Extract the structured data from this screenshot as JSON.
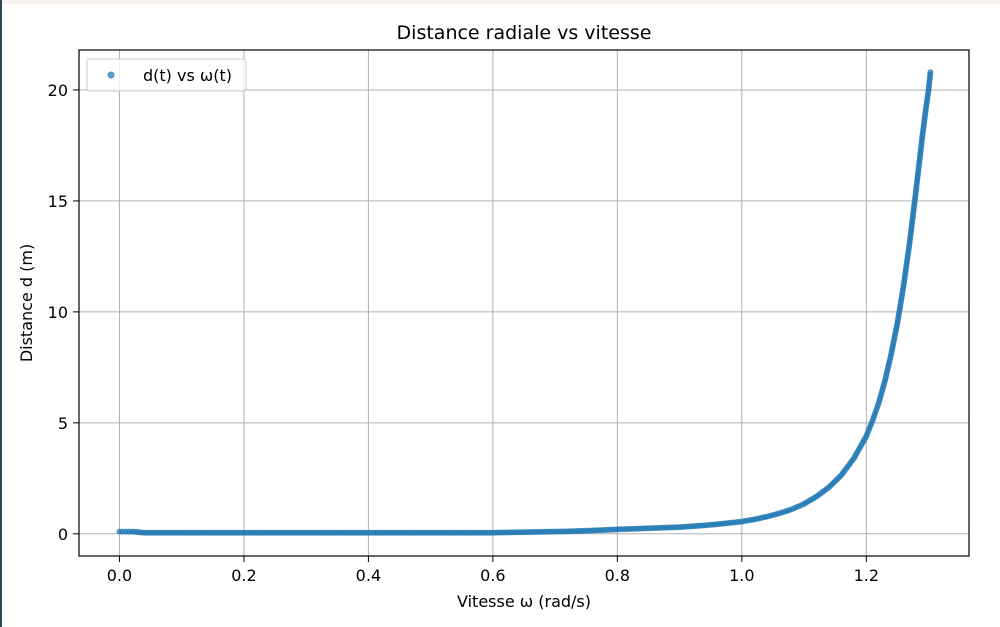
{
  "chart_data": {
    "type": "scatter",
    "title": "Distance radiale vs vitesse",
    "xlabel": "Vitesse ω (rad/s)",
    "ylabel": "Distance d (m)",
    "xlim": [
      -0.065,
      1.365
    ],
    "ylim": [
      -1.0,
      21.8
    ],
    "xticks": [
      0.0,
      0.2,
      0.4,
      0.6,
      0.8,
      1.0,
      1.2
    ],
    "xtick_labels": [
      "0.0",
      "0.2",
      "0.4",
      "0.6",
      "0.8",
      "1.0",
      "1.2"
    ],
    "yticks": [
      0,
      5,
      10,
      15,
      20
    ],
    "ytick_labels": [
      "0",
      "5",
      "10",
      "15",
      "20"
    ],
    "grid": true,
    "legend_position": "top-left",
    "series": [
      {
        "name": "d(t) vs ω(t)",
        "color": "#1f77b4",
        "x": [
          0.0,
          0.01,
          0.02,
          0.04,
          0.06,
          0.08,
          0.1,
          0.12,
          0.14,
          0.16,
          0.18,
          0.2,
          0.22,
          0.24,
          0.26,
          0.28,
          0.3,
          0.32,
          0.34,
          0.36,
          0.38,
          0.4,
          0.42,
          0.44,
          0.46,
          0.48,
          0.5,
          0.52,
          0.54,
          0.56,
          0.58,
          0.6,
          0.62,
          0.64,
          0.66,
          0.68,
          0.7,
          0.72,
          0.74,
          0.76,
          0.78,
          0.8,
          0.82,
          0.84,
          0.86,
          0.88,
          0.9,
          0.92,
          0.94,
          0.96,
          0.98,
          1.0,
          1.02,
          1.04,
          1.06,
          1.08,
          1.1,
          1.12,
          1.14,
          1.16,
          1.18,
          1.2,
          1.21,
          1.22,
          1.23,
          1.24,
          1.25,
          1.26,
          1.27,
          1.28,
          1.285,
          1.29,
          1.295,
          1.3,
          1.303
        ],
        "y": [
          0.1,
          0.1,
          0.1,
          0.05,
          0.05,
          0.05,
          0.05,
          0.05,
          0.05,
          0.05,
          0.05,
          0.05,
          0.05,
          0.05,
          0.05,
          0.05,
          0.05,
          0.05,
          0.05,
          0.05,
          0.05,
          0.05,
          0.05,
          0.05,
          0.05,
          0.05,
          0.05,
          0.05,
          0.05,
          0.05,
          0.05,
          0.05,
          0.06,
          0.07,
          0.08,
          0.09,
          0.1,
          0.11,
          0.13,
          0.15,
          0.17,
          0.2,
          0.22,
          0.24,
          0.26,
          0.28,
          0.3,
          0.34,
          0.38,
          0.43,
          0.49,
          0.55,
          0.65,
          0.77,
          0.92,
          1.1,
          1.35,
          1.68,
          2.1,
          2.65,
          3.4,
          4.4,
          5.1,
          5.9,
          6.9,
          8.1,
          9.5,
          11.2,
          13.2,
          15.5,
          16.7,
          17.9,
          19.0,
          20.0,
          20.8
        ]
      }
    ]
  }
}
